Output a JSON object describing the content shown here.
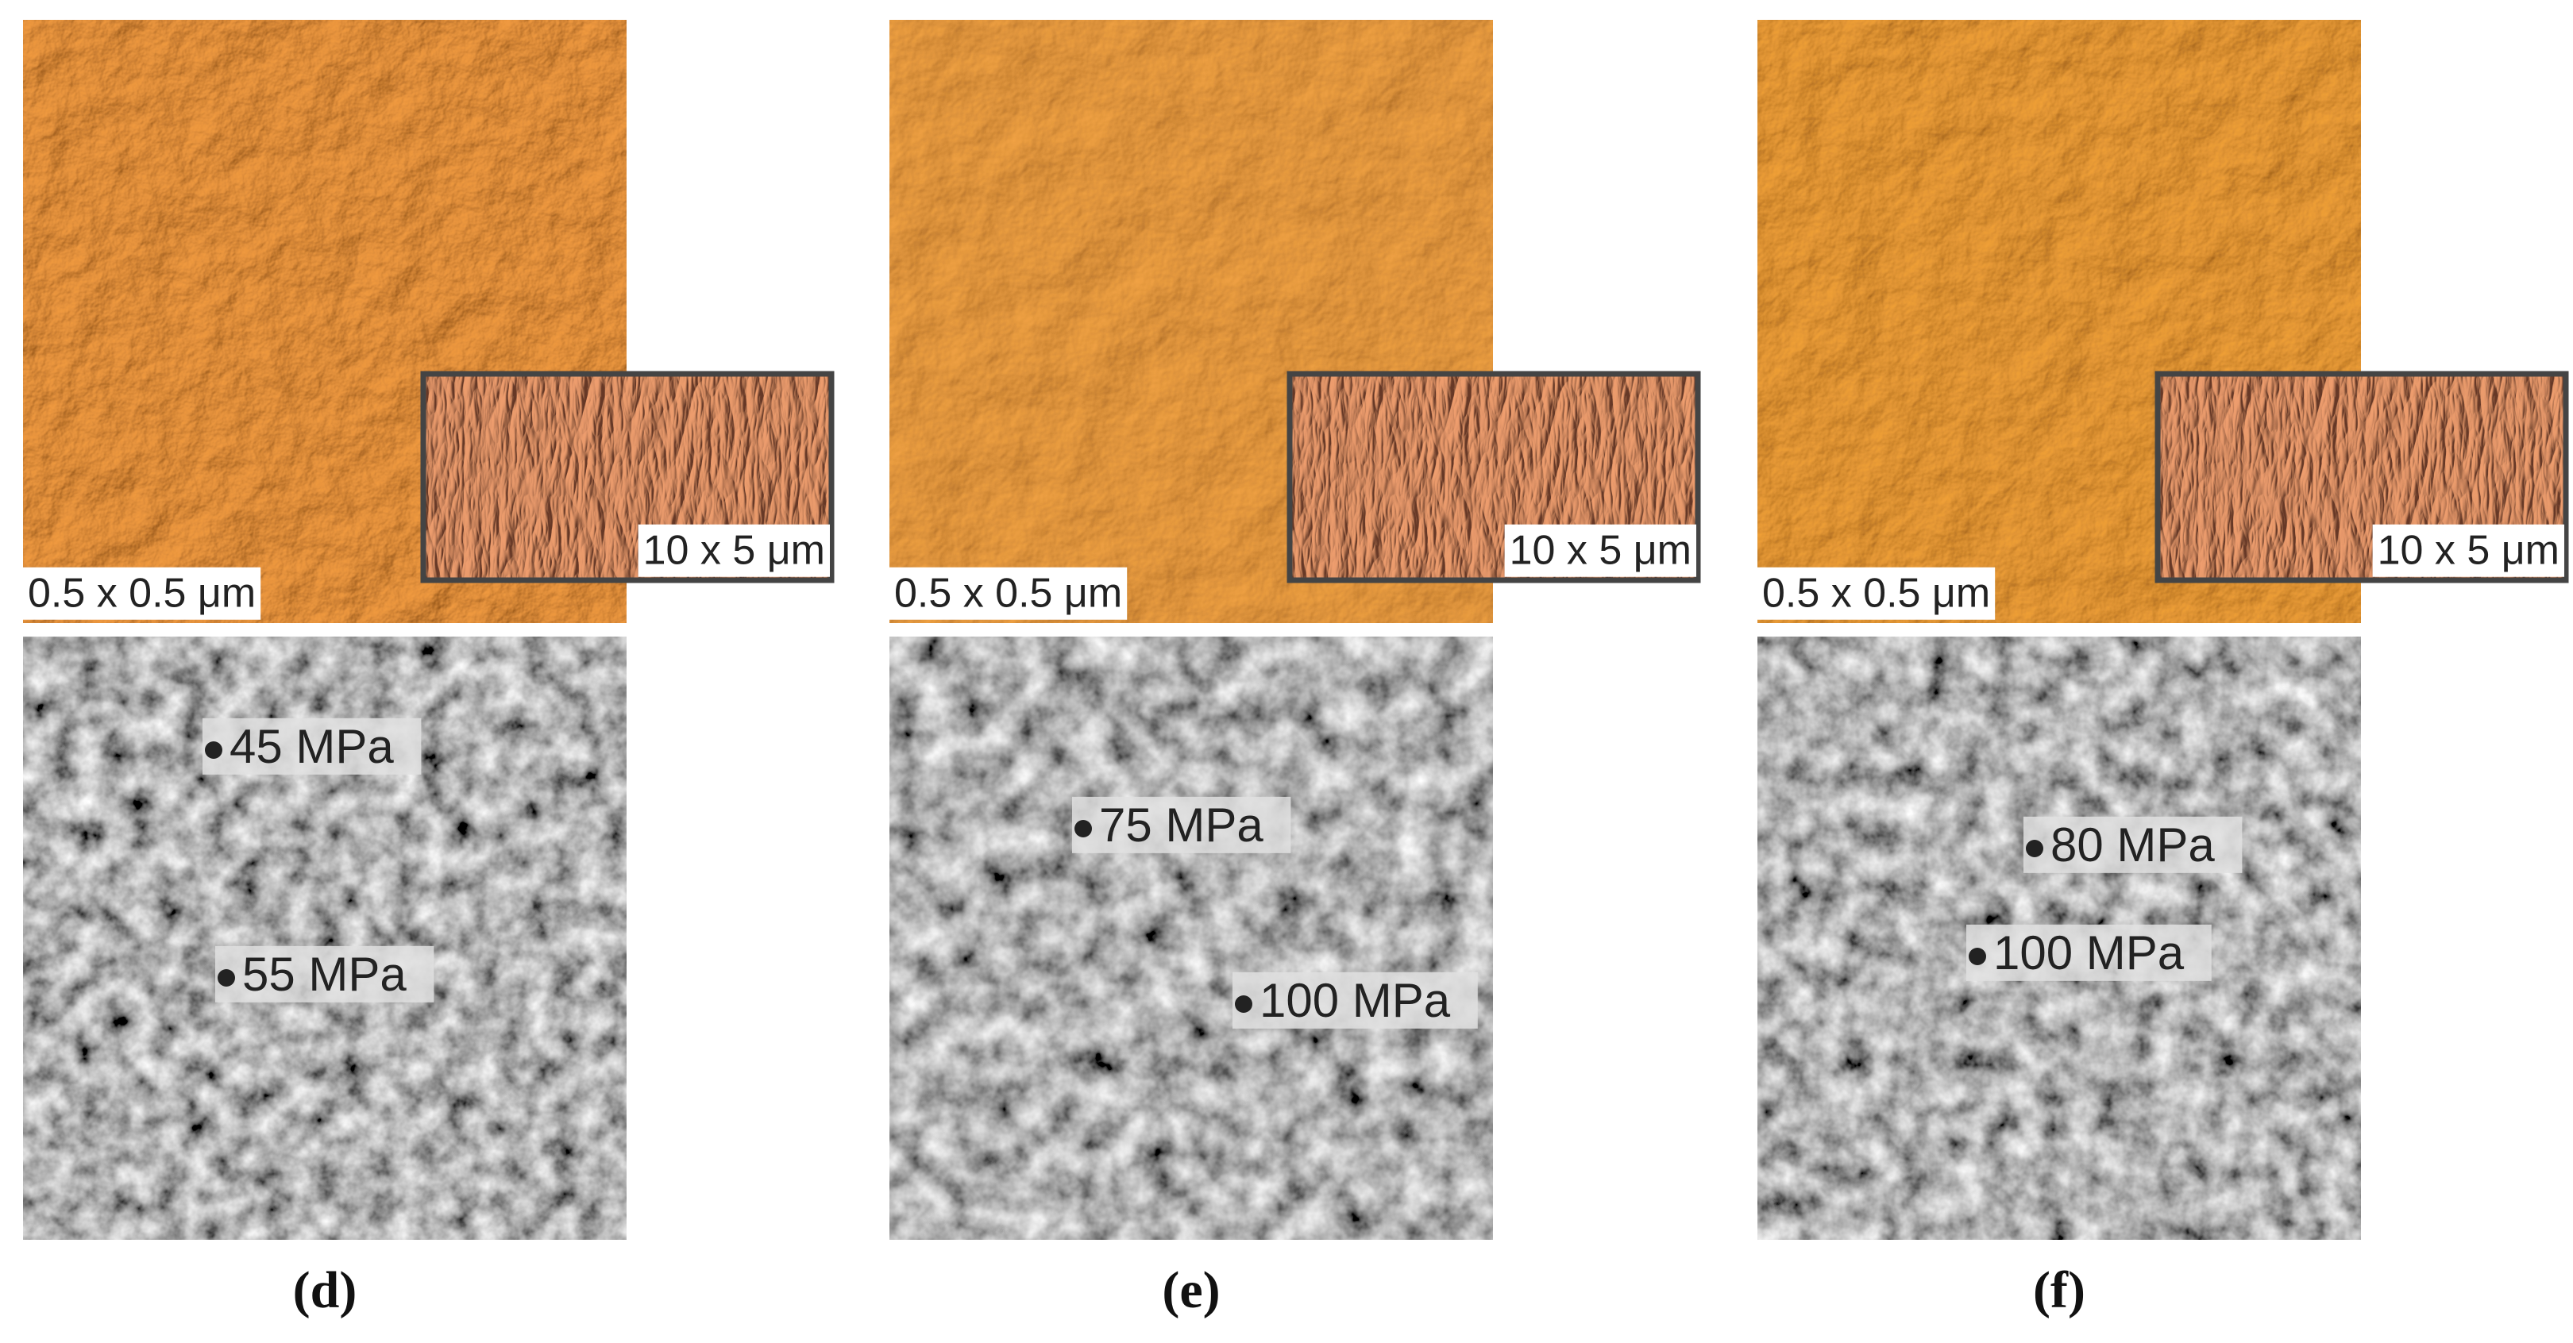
{
  "panels": [
    {
      "top_scale": "0.5 x 0.5 μm",
      "inset_scale": "10 x 5 μm",
      "points": [
        {
          "label": "45 MPa"
        },
        {
          "label": "55 MPa"
        }
      ],
      "caption": "(d)"
    },
    {
      "top_scale": "0.5 x 0.5 μm",
      "inset_scale": "10 x 5 μm",
      "points": [
        {
          "label": "75 MPa"
        },
        {
          "label": "100 MPa"
        }
      ],
      "caption": "(e)"
    },
    {
      "top_scale": "0.5 x 0.5 μm",
      "inset_scale": "10 x 5 μm",
      "points": [
        {
          "label": "80 MPa"
        },
        {
          "label": "100 MPa"
        }
      ],
      "caption": "(f)"
    }
  ]
}
